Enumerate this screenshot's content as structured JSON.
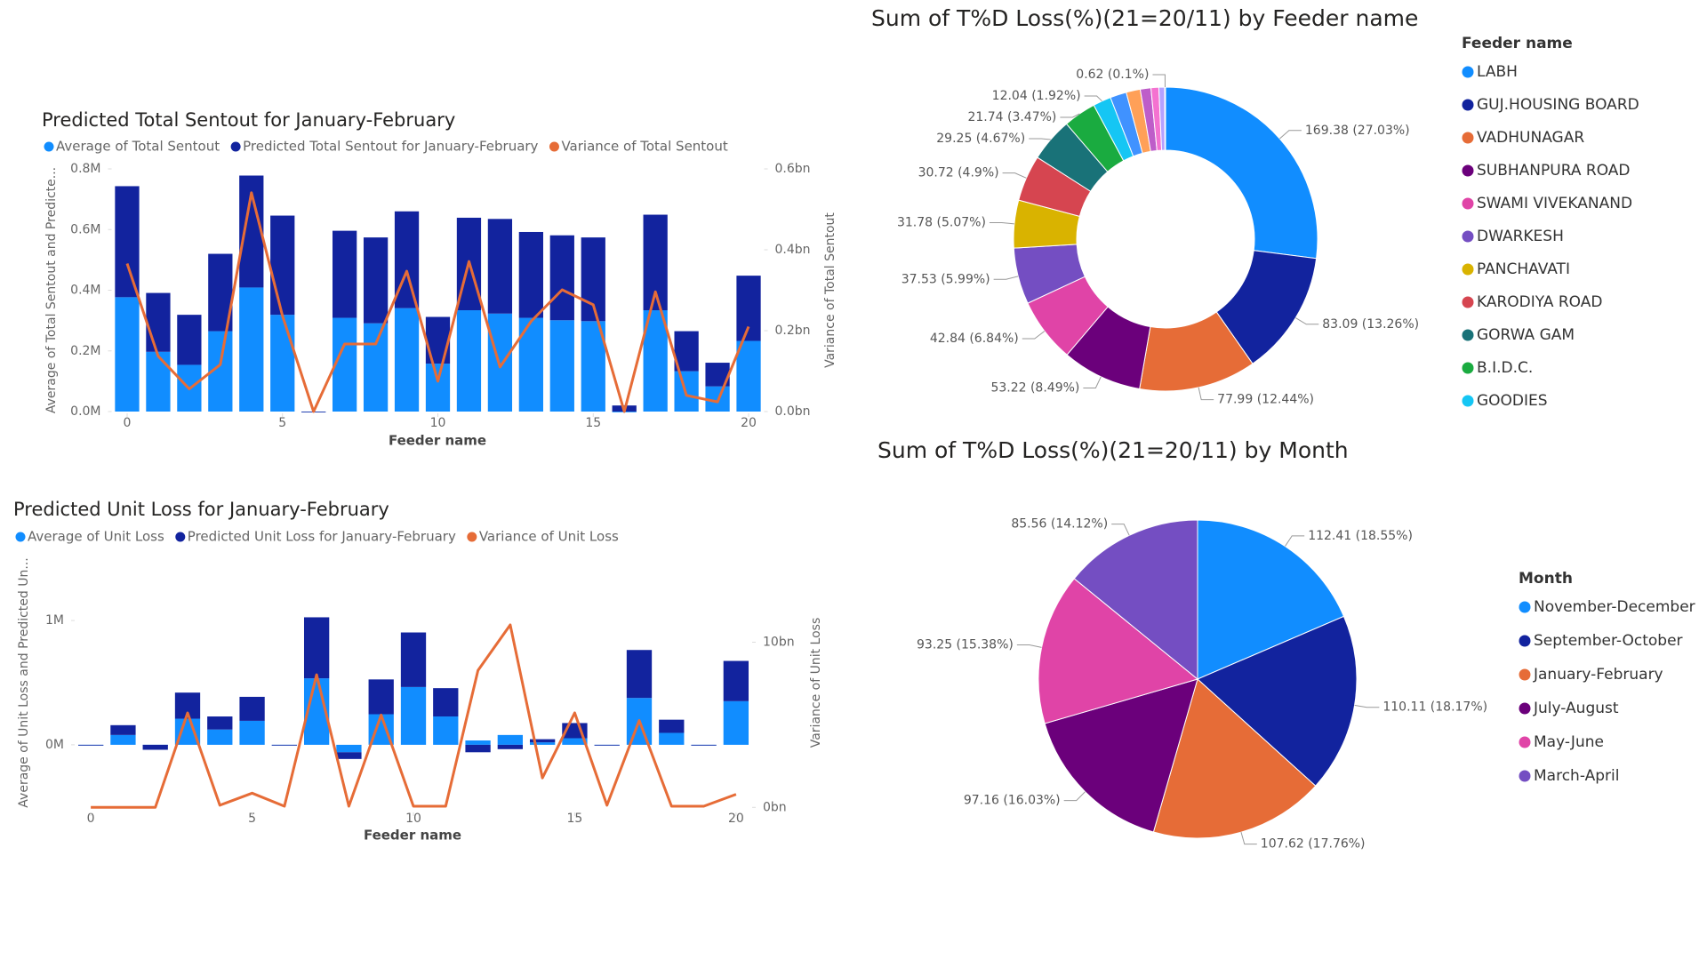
{
  "chart_data": [
    {
      "type": "combo",
      "title": "Predicted Total Sentout for January-February",
      "x_label": "Feeder name",
      "y_label": "Average of Total Sentout and Predicte...",
      "y2_label": "Variance of Total Sentout",
      "x": [
        0,
        1,
        2,
        3,
        4,
        5,
        6,
        7,
        8,
        9,
        10,
        11,
        12,
        13,
        14,
        15,
        16,
        17,
        18,
        19,
        20
      ],
      "xlim": [
        -0.5,
        20.5
      ],
      "xticks": [
        0,
        5,
        10,
        15,
        20
      ],
      "ylim": [
        0,
        0.8
      ],
      "yticks": [
        {
          "value": 0,
          "label": "0.0M"
        },
        {
          "value": 0.2,
          "label": "0.2M"
        },
        {
          "value": 0.4,
          "label": "0.4M"
        },
        {
          "value": 0.6,
          "label": "0.6M"
        },
        {
          "value": 0.8,
          "label": "0.8M"
        }
      ],
      "y2lim": [
        0,
        0.6
      ],
      "y2ticks": [
        {
          "value": 0,
          "label": "0.0bn"
        },
        {
          "value": 0.2,
          "label": "0.2bn"
        },
        {
          "value": 0.4,
          "label": "0.4bn"
        },
        {
          "value": 0.6,
          "label": "0.6bn"
        }
      ],
      "stacked": true,
      "legend": "top",
      "grid": false,
      "series": [
        {
          "name": "Average of Total Sentout",
          "type": "bar",
          "color": "#118DFF",
          "values": [
            0.377,
            0.197,
            0.154,
            0.265,
            0.409,
            0.319,
            0,
            0.309,
            0.291,
            0.341,
            0.158,
            0.334,
            0.323,
            0.309,
            0.301,
            0.298,
            0,
            0.334,
            0.133,
            0.083,
            0.233
          ]
        },
        {
          "name": "Predicted Total Sentout for January-February",
          "type": "bar",
          "color": "#12239E",
          "values": [
            0.366,
            0.194,
            0.165,
            0.255,
            0.369,
            0.327,
            0,
            0.287,
            0.283,
            0.319,
            0.154,
            0.305,
            0.312,
            0.283,
            0.28,
            0.276,
            0.02,
            0.315,
            0.132,
            0.078,
            0.215
          ]
        },
        {
          "name": "Variance of Total Sentout",
          "type": "line",
          "axis": "y2",
          "color": "#E66C37",
          "values": [
            0.366,
            0.137,
            0.056,
            0.116,
            0.541,
            0.237,
            0,
            0.167,
            0.167,
            0.347,
            0.075,
            0.371,
            0.11,
            0.223,
            0.301,
            0.264,
            0,
            0.296,
            0.04,
            0.024,
            0.21
          ]
        }
      ]
    },
    {
      "type": "combo",
      "title": "Predicted Unit Loss for January-February",
      "x_label": "Feeder name",
      "y_label": "Average of Unit Loss and Predicted Un...",
      "y2_label": "Variance of Unit Loss",
      "x": [
        0,
        1,
        2,
        3,
        4,
        5,
        6,
        7,
        8,
        9,
        10,
        11,
        12,
        13,
        14,
        15,
        16,
        17,
        18,
        19,
        20
      ],
      "xlim": [
        -0.5,
        20.5
      ],
      "xticks": [
        0,
        5,
        10,
        15,
        20
      ],
      "ylim": [
        -0.53,
        1.53
      ],
      "yticks": [
        {
          "value": 0,
          "label": "0M"
        },
        {
          "value": 1,
          "label": "1M"
        }
      ],
      "y2lim": [
        -0.2,
        15.3
      ],
      "y2ticks": [
        {
          "value": 0,
          "label": "0bn"
        },
        {
          "value": 10,
          "label": "10bn"
        }
      ],
      "stacked": true,
      "legend": "top",
      "grid": false,
      "series": [
        {
          "name": "Average of Unit Loss",
          "type": "bar",
          "color": "#118DFF",
          "values": [
            0,
            0.079,
            0,
            0.21,
            0.123,
            0.193,
            0,
            0.535,
            -0.06,
            0.246,
            0.465,
            0.228,
            0.035,
            0.079,
            0.02,
            0.053,
            0,
            0.377,
            0.096,
            0,
            0.351
          ]
        },
        {
          "name": "Predicted Unit Loss for January-February",
          "type": "bar",
          "color": "#12239E",
          "values": [
            0,
            0.079,
            -0.04,
            0.21,
            0.105,
            0.193,
            0,
            0.491,
            -0.054,
            0.28,
            0.439,
            0.228,
            -0.06,
            -0.035,
            0.025,
            0.122,
            0,
            0.386,
            0.106,
            0,
            0.324
          ]
        },
        {
          "name": "Variance of Unit Loss",
          "type": "line",
          "axis": "y2",
          "color": "#E66C37",
          "values": [
            0,
            0,
            0,
            5.72,
            0.13,
            0.86,
            0.07,
            8.03,
            0.07,
            5.59,
            0.07,
            0.07,
            8.29,
            11.05,
            1.78,
            5.72,
            0.13,
            5.26,
            0.07,
            0.07,
            0.79
          ]
        }
      ]
    },
    {
      "type": "donut",
      "title": "Sum of T%D Loss(%)(21=20/11) by Feeder name",
      "legend_title": "Feeder name",
      "legend": "right",
      "categories": [
        "LABH",
        "GUJ.HOUSING BOARD",
        "VADHUNAGAR",
        "SUBHANPURA ROAD",
        "SWAMI VIVEKANAND",
        "DWARKESH",
        "PANCHAVATI",
        "KARODIYA ROAD",
        "GORWA GAM",
        "B.I.D.C.",
        "GOODIES",
        null,
        null,
        null,
        null,
        null,
        null
      ],
      "values": [
        169.38,
        83.09,
        77.99,
        53.22,
        42.84,
        37.53,
        31.78,
        30.72,
        29.25,
        21.74,
        12.04,
        10.9,
        9.4,
        7.1,
        5.2,
        3.8,
        0.62
      ],
      "value_labels": [
        "169.38 (27.03%)",
        "83.09 (13.26%)",
        "77.99 (12.44%)",
        "53.22 (8.49%)",
        "42.84 (6.84%)",
        "37.53 (5.99%)",
        "31.78 (5.07%)",
        "30.72 (4.9%)",
        "29.25 (4.67%)",
        "21.74 (3.47%)",
        "12.04 (1.92%)",
        null,
        null,
        null,
        null,
        null,
        "0.62 (0.1%)"
      ],
      "colors": [
        "#118DFF",
        "#12239E",
        "#E66C37",
        "#6B007B",
        "#E044A7",
        "#744EC2",
        "#D9B300",
        "#D64550",
        "#197278",
        "#1AAB40",
        "#15C6F4",
        "#4092FF",
        "#FFA058",
        "#BE5DC9",
        "#F472D0",
        "#B5A1FF",
        "#C4A200"
      ]
    },
    {
      "type": "pie",
      "title": "Sum of T%D Loss(%)(21=20/11) by Month",
      "legend_title": "Month",
      "legend": "right",
      "categories": [
        "November-December",
        "September-October",
        "January-February",
        "July-August",
        "May-June",
        "March-April"
      ],
      "values": [
        112.41,
        110.11,
        107.62,
        97.16,
        93.25,
        85.56
      ],
      "value_labels": [
        "112.41 (18.55%)",
        "110.11 (18.17%)",
        "107.62 (17.76%)",
        "97.16 (16.03%)",
        "93.25 (15.38%)",
        "85.56 (14.12%)"
      ],
      "colors": [
        "#118DFF",
        "#12239E",
        "#E66C37",
        "#6B007B",
        "#E044A7",
        "#744EC2"
      ]
    }
  ]
}
